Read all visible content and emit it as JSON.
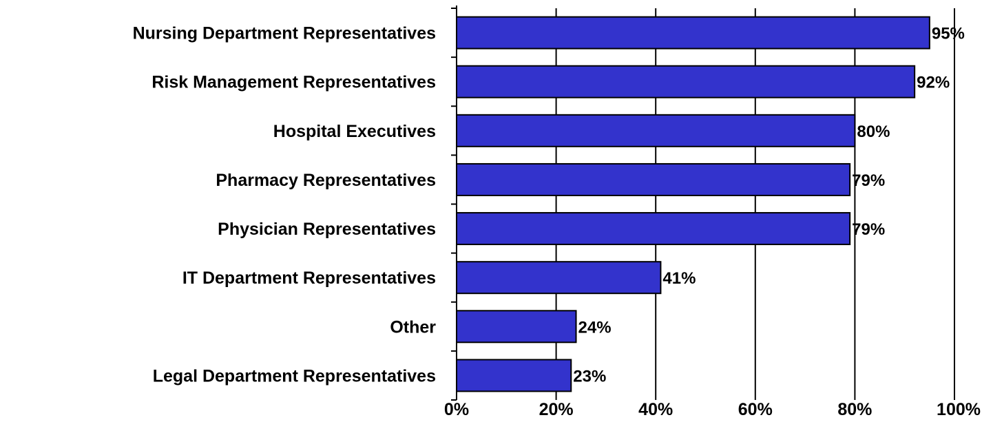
{
  "chart_data": {
    "type": "bar",
    "orientation": "horizontal",
    "title": "",
    "xlabel": "",
    "ylabel": "",
    "categories": [
      "Nursing Department Representatives",
      "Risk Management Representatives",
      "Hospital Executives",
      "Pharmacy Representatives",
      "Physician Representatives",
      "IT Department Representatives",
      "Other",
      "Legal Department Representatives"
    ],
    "values": [
      95,
      92,
      80,
      79,
      79,
      41,
      24,
      23
    ],
    "data_labels": [
      "95%",
      "92%",
      "80%",
      "79%",
      "79%",
      "41%",
      "24%",
      "23%"
    ],
    "x_ticks": [
      "0%",
      "20%",
      "40%",
      "60%",
      "80%",
      "100%"
    ],
    "xlim": [
      0,
      100
    ],
    "grid": "vertical",
    "legend": "none",
    "colors": {
      "bar_fill": "#3333CC",
      "bar_stroke": "#000000",
      "grid": "#000000",
      "text": "#000000",
      "background": "#FFFFFF"
    }
  }
}
